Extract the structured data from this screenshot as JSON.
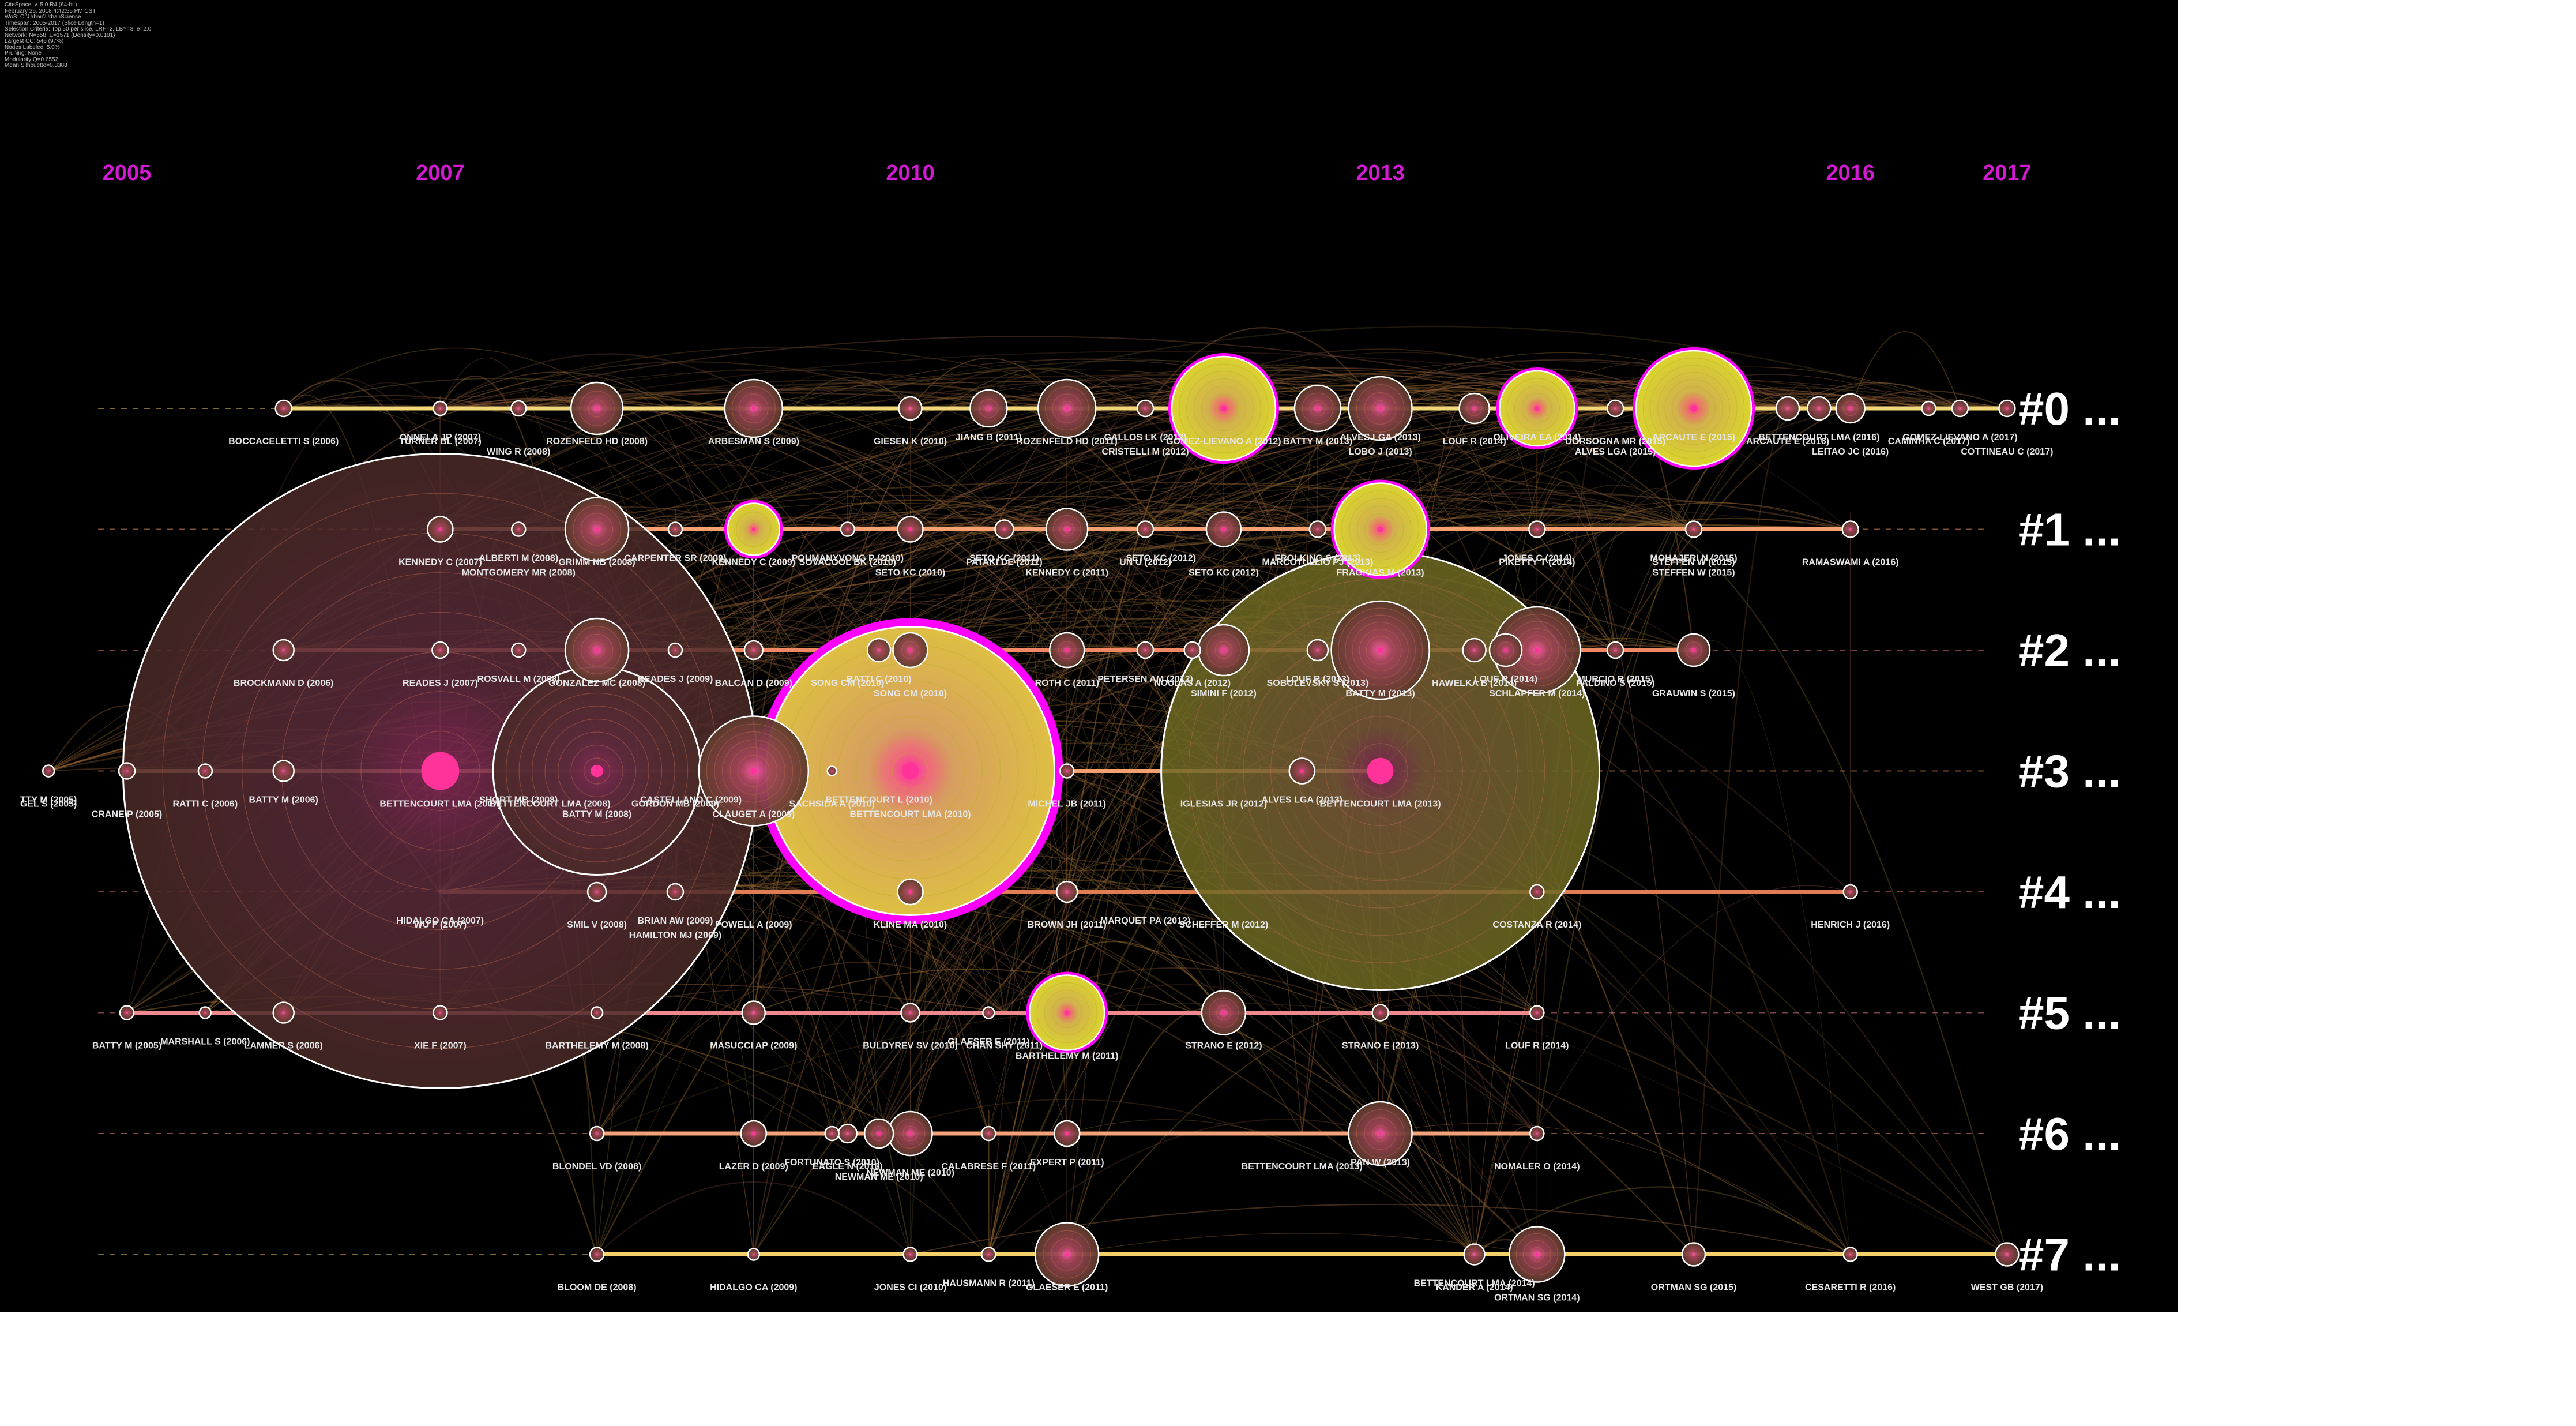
{
  "metadata_lines": [
    "CiteSpace, v. 5.0.R4 (64-bit)",
    "February 26, 2018 4:42:55 PM CST",
    "WoS: C:\\Urban\\UrbanScience",
    "Timespan: 2005-2017 (Slice Length=1)",
    "Selection Criteria: Top 50 per slice, LRF=2, LBY=8, e=2.0",
    "Network: N=558, E=1571 (Density=0.0101)",
    "Largest CC: 546 (97%)",
    "Nodes Labeled: 5.0%",
    "Pruning: None",
    "Modularity Q=0.6552",
    "Mean Silhouette=0.3388"
  ],
  "colors": {
    "background": "#000000",
    "year_label": "#d21ad2",
    "burst_ring": "#ff00ff",
    "text": "#e6e6e6",
    "cluster_label": "#ffffff"
  },
  "chart_data": {
    "type": "timeline",
    "time_axis": {
      "years": [
        2005,
        2007,
        2010,
        2013,
        2016,
        2017
      ],
      "range": [
        2005,
        2017
      ]
    },
    "clusters": [
      {
        "id": "#0",
        "label": "#0 ...",
        "line_color": "#f2d77a",
        "start": 2006,
        "end": 2017,
        "nodes": [
          {
            "year": 2006.0,
            "label": "BOCCACELETTI S (2006)",
            "r": 14
          },
          {
            "year": 2007.0,
            "label": "TURNER BL (2007)",
            "r": 12
          },
          {
            "year": 2007.0,
            "label": "ONNELA JP (2007)",
            "r": 0
          },
          {
            "year": 2007.5,
            "label": "WING R (2008)",
            "r": 13
          },
          {
            "year": 2008.0,
            "label": "ROZENFELD HD (2008)",
            "r": 45
          },
          {
            "year": 2009.0,
            "label": "ARBESMAN S (2009)",
            "r": 50
          },
          {
            "year": 2010.0,
            "label": "GIESEN K (2010)",
            "r": 20
          },
          {
            "year": 2010.5,
            "label": "JIANG B (2011)",
            "r": 32
          },
          {
            "year": 2011.0,
            "label": "ROZENFELD HD (2011)",
            "r": 50
          },
          {
            "year": 2011.5,
            "label": "GALLOS LK (2012)",
            "r": 14
          },
          {
            "year": 2011.5,
            "label": "CRISTELLI M (2012)",
            "r": 0
          },
          {
            "year": 2012.0,
            "label": "GOMEZ-LIEVANO A (2012)",
            "r": 90,
            "burst": true
          },
          {
            "year": 2012.6,
            "label": "BATTY M (2013)",
            "r": 40
          },
          {
            "year": 2013.0,
            "label": "ALVES LGA (2013)",
            "r": 55
          },
          {
            "year": 2013.0,
            "label": "LOBO J (2013)",
            "r": 0
          },
          {
            "year": 2013.6,
            "label": "LOUF R (2014)",
            "r": 26
          },
          {
            "year": 2014.0,
            "label": "OLIVEIRA EA (2014)",
            "r": 65,
            "burst": true
          },
          {
            "year": 2014.5,
            "label": "DORSOGNA MR (2015)",
            "r": 14
          },
          {
            "year": 2014.5,
            "label": "ALVES LGA (2015)",
            "r": 0
          },
          {
            "year": 2015.0,
            "label": "ARCAUTE E (2015)",
            "r": 100,
            "burst": true
          },
          {
            "year": 2015.6,
            "label": "ARCAUTE E (2016)",
            "r": 20
          },
          {
            "year": 2015.8,
            "label": "BETTENCOURT LMA (2016)",
            "r": 20
          },
          {
            "year": 2016.0,
            "label": "LEITAO JC (2016)",
            "r": 25
          },
          {
            "year": 2016.5,
            "label": "CAMINHA C (2017)",
            "r": 12
          },
          {
            "year": 2016.7,
            "label": "GOMEZ-LIEVANO A (2017)",
            "r": 14
          },
          {
            "year": 2017.0,
            "label": "COTTINEAU C (2017)",
            "r": 14
          }
        ]
      },
      {
        "id": "#1",
        "label": "#1 ...",
        "line_color": "#f7a072",
        "start": 2007,
        "end": 2016,
        "nodes": [
          {
            "year": 2007.0,
            "label": "KENNEDY C (2007)",
            "r": 22
          },
          {
            "year": 2007.5,
            "label": "ALBERTI M (2008)",
            "r": 12
          },
          {
            "year": 2007.5,
            "label": "MONTGOMERY MR (2008)",
            "r": 0
          },
          {
            "year": 2008.0,
            "label": "GRIMM NB (2008)",
            "r": 55
          },
          {
            "year": 2008.5,
            "label": "CARPENTER SR (2009)",
            "r": 12
          },
          {
            "year": 2009.0,
            "label": "KENNEDY C (2009)",
            "r": 45,
            "burst": true
          },
          {
            "year": 2009.6,
            "label": "SOVACOOL BK (2010)",
            "r": 12
          },
          {
            "year": 2009.6,
            "label": "POUMANYVONG P (2010)",
            "r": 0
          },
          {
            "year": 2010.0,
            "label": "SETO KC (2010)",
            "r": 22
          },
          {
            "year": 2010.6,
            "label": "PATAKI DE (2011)",
            "r": 16
          },
          {
            "year": 2010.6,
            "label": "SETO KC (2011)",
            "r": 0
          },
          {
            "year": 2011.0,
            "label": "KENNEDY C (2011)",
            "r": 36
          },
          {
            "year": 2011.5,
            "label": "UN U (2012)",
            "r": 14
          },
          {
            "year": 2011.6,
            "label": "SETO KC (2012)",
            "r": 0
          },
          {
            "year": 2012.0,
            "label": "SETO KC (2012)",
            "r": 30
          },
          {
            "year": 2012.6,
            "label": "MARCOTULLIO PJ (2013)",
            "r": 14
          },
          {
            "year": 2012.6,
            "label": "FROLKING S (2013)",
            "r": 0
          },
          {
            "year": 2013.0,
            "label": "FRAGKIAS M (2013)",
            "r": 80,
            "burst": true
          },
          {
            "year": 2014.0,
            "label": "PIKETTY T (2014)",
            "r": 14
          },
          {
            "year": 2014.0,
            "label": "JONES C (2014)",
            "r": 0
          },
          {
            "year": 2015.0,
            "label": "STEFFEN W (2015)",
            "r": 14
          },
          {
            "year": 2015.0,
            "label": "MOHAJERI N (2015)",
            "r": 0
          },
          {
            "year": 2015.0,
            "label": "STEFFEN W (2015)",
            "r": 0
          },
          {
            "year": 2016.0,
            "label": "RAMASWAMI A (2016)",
            "r": 14
          }
        ]
      },
      {
        "id": "#2",
        "label": "#2 ...",
        "line_color": "#f08866",
        "start": 2006,
        "end": 2015,
        "nodes": [
          {
            "year": 2006.0,
            "label": "BROCKMANN D (2006)",
            "r": 18
          },
          {
            "year": 2007.0,
            "label": "READES J (2007)",
            "r": 14
          },
          {
            "year": 2007.5,
            "label": "ROSVALL M (2008)",
            "r": 12
          },
          {
            "year": 2008.0,
            "label": "GONZALEZ MC (2008)",
            "r": 55
          },
          {
            "year": 2008.5,
            "label": "READES J (2009)",
            "r": 12
          },
          {
            "year": 2009.0,
            "label": "BALCAN D (2009)",
            "r": 16
          },
          {
            "year": 2009.6,
            "label": "SONG CM (2010)",
            "r": 0
          },
          {
            "year": 2009.8,
            "label": "RATTI C (2010)",
            "r": 20
          },
          {
            "year": 2010.0,
            "label": "SONG CM (2010)",
            "r": 30
          },
          {
            "year": 2011.0,
            "label": "ROTH C (2011)",
            "r": 30
          },
          {
            "year": 2011.5,
            "label": "PETERSEN AM (2012)",
            "r": 14
          },
          {
            "year": 2011.8,
            "label": "NOULAS A (2012)",
            "r": 14
          },
          {
            "year": 2012.0,
            "label": "SIMINI F (2012)",
            "r": 44
          },
          {
            "year": 2012.6,
            "label": "SOBOLEVSKY S (2013)",
            "r": 18
          },
          {
            "year": 2012.6,
            "label": "LOUF R (2013)",
            "r": 0
          },
          {
            "year": 2013.0,
            "label": "BATTY M (2013)",
            "r": 85
          },
          {
            "year": 2013.6,
            "label": "HAWELKA B (2014)",
            "r": 20
          },
          {
            "year": 2013.8,
            "label": "LOUF R (2014)",
            "r": 28
          },
          {
            "year": 2014.0,
            "label": "SCHLAPFER M (2014)",
            "r": 75
          },
          {
            "year": 2014.5,
            "label": "PALDINO S (2015)",
            "r": 14
          },
          {
            "year": 2014.5,
            "label": "MURCIO R (2015)",
            "r": 0
          },
          {
            "year": 2015.0,
            "label": "GRAUWIN S (2015)",
            "r": 28
          }
        ]
      },
      {
        "id": "#3",
        "label": "#3 ...",
        "line_color": "#f5a070",
        "start": 2005,
        "end": 2013,
        "nodes": [
          {
            "year": 2004.5,
            "label": "GEL S (2005)",
            "r": 10
          },
          {
            "year": 2004.5,
            "label": "TTY M (2005)",
            "r": 0
          },
          {
            "year": 2005.0,
            "label": "CRANE P (2005)",
            "r": 14
          },
          {
            "year": 2005.5,
            "label": "RATTI C (2006)",
            "r": 12
          },
          {
            "year": 2006.0,
            "label": "BATTY M (2006)",
            "r": 18
          },
          {
            "year": 2007.0,
            "label": "BETTENCOURT LMA (2007)",
            "r": 550
          },
          {
            "year": 2007.5,
            "label": "SHORT MB (2008)",
            "r": 0
          },
          {
            "year": 2007.7,
            "label": "BETTENCOURT LMA (2008)",
            "r": 0
          },
          {
            "year": 2008.0,
            "label": "BATTY M (2008)",
            "r": 180
          },
          {
            "year": 2008.5,
            "label": "GORDON MB (2009)",
            "r": 0
          },
          {
            "year": 2008.6,
            "label": "CASTELLANO C (2009)",
            "r": 0
          },
          {
            "year": 2009.0,
            "label": "CLAUGET A (2009)",
            "r": 95
          },
          {
            "year": 2009.5,
            "label": "SACHSIDA A (2010)",
            "r": 8
          },
          {
            "year": 2009.8,
            "label": "BETTENCOURT L (2010)",
            "r": 0
          },
          {
            "year": 2010.0,
            "label": "BETTENCOURT LMA (2010)",
            "r": 250,
            "burst": true
          },
          {
            "year": 2011.0,
            "label": "MICHEL JB (2011)",
            "r": 12
          },
          {
            "year": 2012.0,
            "label": "IGLESIAS JR (2012)",
            "r": 0
          },
          {
            "year": 2012.5,
            "label": "ALVES LGA (2013)",
            "r": 22
          },
          {
            "year": 2013.0,
            "label": "BETTENCOURT LMA (2013)",
            "r": 380
          }
        ]
      },
      {
        "id": "#4",
        "label": "#4 ...",
        "line_color": "#e07d55",
        "start": 2007,
        "end": 2016,
        "nodes": [
          {
            "year": 2007.0,
            "label": "WU F (2007)",
            "r": 0
          },
          {
            "year": 2007.0,
            "label": "HIDALGO CA (2007)",
            "r": 0
          },
          {
            "year": 2008.0,
            "label": "SMIL V (2008)",
            "r": 16
          },
          {
            "year": 2008.5,
            "label": "BRIAN AW (2009)",
            "r": 14
          },
          {
            "year": 2008.5,
            "label": "HAMILTON MJ (2009)",
            "r": 0
          },
          {
            "year": 2009.0,
            "label": "POWELL A (2009)",
            "r": 0
          },
          {
            "year": 2010.0,
            "label": "KLINE MA (2010)",
            "r": 22
          },
          {
            "year": 2011.0,
            "label": "BROWN JH (2011)",
            "r": 18
          },
          {
            "year": 2011.5,
            "label": "MARQUET PA (2012)",
            "r": 0
          },
          {
            "year": 2012.0,
            "label": "SCHEFFER M (2012)",
            "r": 0
          },
          {
            "year": 2014.0,
            "label": "COSTANZA R (2014)",
            "r": 12
          },
          {
            "year": 2016.0,
            "label": "HENRICH J (2016)",
            "r": 12
          }
        ]
      },
      {
        "id": "#5",
        "label": "#5 ...",
        "line_color": "#ee8a8e",
        "start": 2005,
        "end": 2014,
        "nodes": [
          {
            "year": 2005.0,
            "label": "BATTY M (2005)",
            "r": 12
          },
          {
            "year": 2005.5,
            "label": "MARSHALL S (2006)",
            "r": 10
          },
          {
            "year": 2006.0,
            "label": "LAMMER S (2006)",
            "r": 18
          },
          {
            "year": 2007.0,
            "label": "XIE F (2007)",
            "r": 12
          },
          {
            "year": 2008.0,
            "label": "BARTHELEMY M (2008)",
            "r": 10
          },
          {
            "year": 2009.0,
            "label": "MASUCCI AP (2009)",
            "r": 20
          },
          {
            "year": 2010.0,
            "label": "BULDYREV SV (2010)",
            "r": 16
          },
          {
            "year": 2010.5,
            "label": "GLAESER E (2011)",
            "r": 10
          },
          {
            "year": 2010.6,
            "label": "CHAN SHY (2011)",
            "r": 0
          },
          {
            "year": 2011.0,
            "label": "BARTHELEMY M (2011)",
            "r": 65,
            "burst": true
          },
          {
            "year": 2012.0,
            "label": "STRANO E (2012)",
            "r": 38
          },
          {
            "year": 2013.0,
            "label": "STRANO E (2013)",
            "r": 14
          },
          {
            "year": 2014.0,
            "label": "LOUF R (2014)",
            "r": 12
          }
        ]
      },
      {
        "id": "#6",
        "label": "#6 ...",
        "line_color": "#f3a27a",
        "start": 2008,
        "end": 2014,
        "nodes": [
          {
            "year": 2008.0,
            "label": "BLONDEL VD (2008)",
            "r": 12
          },
          {
            "year": 2009.0,
            "label": "LAZER D (2009)",
            "r": 22
          },
          {
            "year": 2009.5,
            "label": "FORTUNATO S (2010)",
            "r": 12
          },
          {
            "year": 2009.6,
            "label": "EAGLE N (2010)",
            "r": 16
          },
          {
            "year": 2009.8,
            "label": "NEWMAN ME (2010)",
            "r": 25
          },
          {
            "year": 2010.0,
            "label": "NEWMAN ME (2010)",
            "r": 38
          },
          {
            "year": 2010.5,
            "label": "CALABRESE F (2011)",
            "r": 12
          },
          {
            "year": 2011.0,
            "label": "EXPERT P (2011)",
            "r": 22
          },
          {
            "year": 2012.5,
            "label": "BETTENCOURT LMA (2013)",
            "r": 0
          },
          {
            "year": 2013.0,
            "label": "PAN W (2013)",
            "r": 55
          },
          {
            "year": 2014.0,
            "label": "NOMALER O (2014)",
            "r": 12
          }
        ]
      },
      {
        "id": "#7",
        "label": "#7 ...",
        "line_color": "#f4d06a",
        "start": 2008,
        "end": 2017,
        "nodes": [
          {
            "year": 2008.0,
            "label": "BLOOM DE (2008)",
            "r": 12
          },
          {
            "year": 2009.0,
            "label": "HIDALGO CA (2009)",
            "r": 10
          },
          {
            "year": 2010.0,
            "label": "JONES CI (2010)",
            "r": 12
          },
          {
            "year": 2010.5,
            "label": "HAUSMANN R (2011)",
            "r": 12
          },
          {
            "year": 2011.0,
            "label": "GLAESER E (2011)",
            "r": 55
          },
          {
            "year": 2013.6,
            "label": "KANDER A (2014)",
            "r": 0
          },
          {
            "year": 2013.6,
            "label": "BETTENCOURT LMA (2014)",
            "r": 18
          },
          {
            "year": 2014.0,
            "label": "ORTMAN SG (2014)",
            "r": 48
          },
          {
            "year": 2015.0,
            "label": "ORTMAN SG (2015)",
            "r": 20
          },
          {
            "year": 2016.0,
            "label": "CESARETTI R (2016)",
            "r": 12
          },
          {
            "year": 2017.0,
            "label": "WEST GB (2017)",
            "r": 20
          }
        ]
      }
    ]
  }
}
